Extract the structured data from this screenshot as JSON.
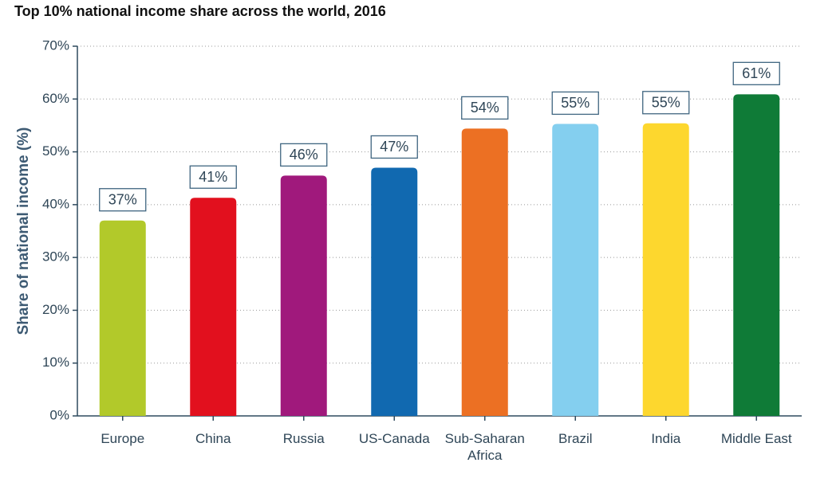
{
  "chart_data": {
    "type": "bar",
    "title": "Top 10% national income share across the world, 2016",
    "y_label": "Share of national income (%)",
    "categories": [
      "Europe",
      "China",
      "Russia",
      "US-Canada",
      "Sub-Saharan Africa",
      "Brazil",
      "India",
      "Middle East"
    ],
    "values": [
      37.0,
      41.3,
      45.5,
      47.0,
      54.4,
      55.3,
      55.4,
      60.9
    ],
    "value_labels": [
      "37%",
      "41%",
      "46%",
      "47%",
      "54%",
      "55%",
      "55%",
      "61%"
    ],
    "colors": [
      "#b2c92a",
      "#e2101e",
      "#a0197c",
      "#1169b0",
      "#ec7023",
      "#84cfef",
      "#fdd72e",
      "#0f7b37"
    ],
    "ylim": [
      0,
      70
    ],
    "yticks": [
      {
        "value": 0,
        "label": "0%"
      },
      {
        "value": 10,
        "label": "10%"
      },
      {
        "value": 20,
        "label": "20%"
      },
      {
        "value": 30,
        "label": "30%"
      },
      {
        "value": 40,
        "label": "40%"
      },
      {
        "value": 50,
        "label": "50%"
      },
      {
        "value": 60,
        "label": "60%"
      },
      {
        "value": 70,
        "label": "70%"
      }
    ],
    "grid": true
  }
}
